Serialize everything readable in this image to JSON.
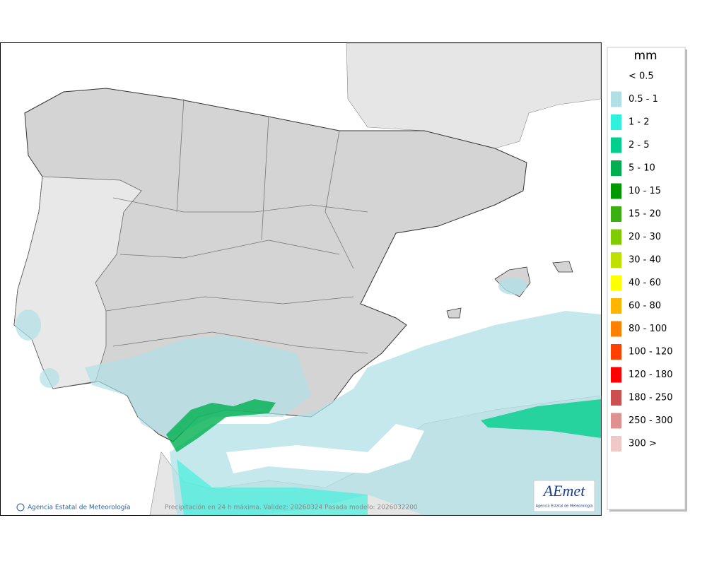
{
  "legend": {
    "title": "mm",
    "items": [
      {
        "label": "< 0.5",
        "color": null
      },
      {
        "label": "0.5 - 1",
        "color": "#b0e0e6"
      },
      {
        "label": "1 - 2",
        "color": "#30f2dc"
      },
      {
        "label": "2 - 5",
        "color": "#00d08c"
      },
      {
        "label": "5 - 10",
        "color": "#00b050"
      },
      {
        "label": "10 - 15",
        "color": "#009a00"
      },
      {
        "label": "15 - 20",
        "color": "#3cb010"
      },
      {
        "label": "20 - 30",
        "color": "#80cc00"
      },
      {
        "label": "30 - 40",
        "color": "#c0e000"
      },
      {
        "label": "40 - 60",
        "color": "#ffff00"
      },
      {
        "label": "60 - 80",
        "color": "#ffb400"
      },
      {
        "label": "80 - 100",
        "color": "#ff8000"
      },
      {
        "label": "100 - 120",
        "color": "#ff4000"
      },
      {
        "label": "120 - 180",
        "color": "#ff0000"
      },
      {
        "label": "180 - 250",
        "color": "#cc5050"
      },
      {
        "label": "250 - 300",
        "color": "#e09090"
      },
      {
        "label": "300 >",
        "color": "#f0c8c8"
      }
    ]
  },
  "footer": {
    "credit": "Agencia Estatal de Meteorología",
    "caption": "Precipitación en 24 h máxima. Validez: 20260324 Pasada modelo: 2026032200"
  },
  "logo": {
    "name": "AEmet",
    "subtitle": "Agencia Estatal de Meteorología"
  }
}
